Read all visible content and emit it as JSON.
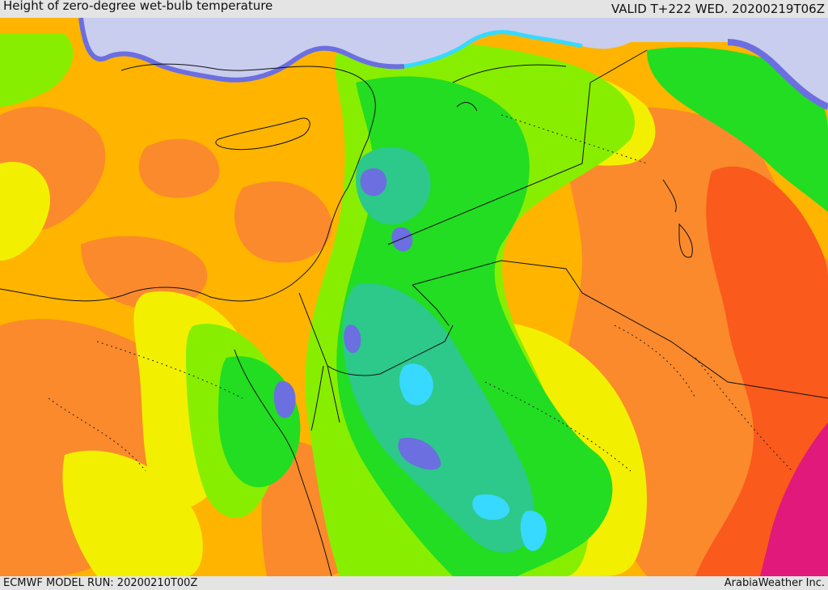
{
  "header": {
    "title": "Height of zero-degree wet-bulb temperature",
    "valid": "VALID T+222 WED. 20200219T06Z"
  },
  "footer": {
    "run": "ECMWF MODEL RUN: 20200210T00Z",
    "credit": "ArabiaWeather Inc."
  },
  "map": {
    "region": "Eastern Mediterranean / Middle East",
    "field": "zero-degree wet-bulb height",
    "colors": {
      "lowest": "#c9cdee",
      "very_low": "#6b6fe0",
      "low": "#38d9ff",
      "teal": "#2cc98a",
      "green": "#22dd22",
      "lime": "#88ee00",
      "yellow_green": "#d8f000",
      "yellow": "#f2f000",
      "amber": "#ffb400",
      "orange": "#fb8a2c",
      "orange_red": "#fa5a1c",
      "red": "#f04a1c",
      "magenta": "#e0197a",
      "border": "#111111"
    }
  }
}
